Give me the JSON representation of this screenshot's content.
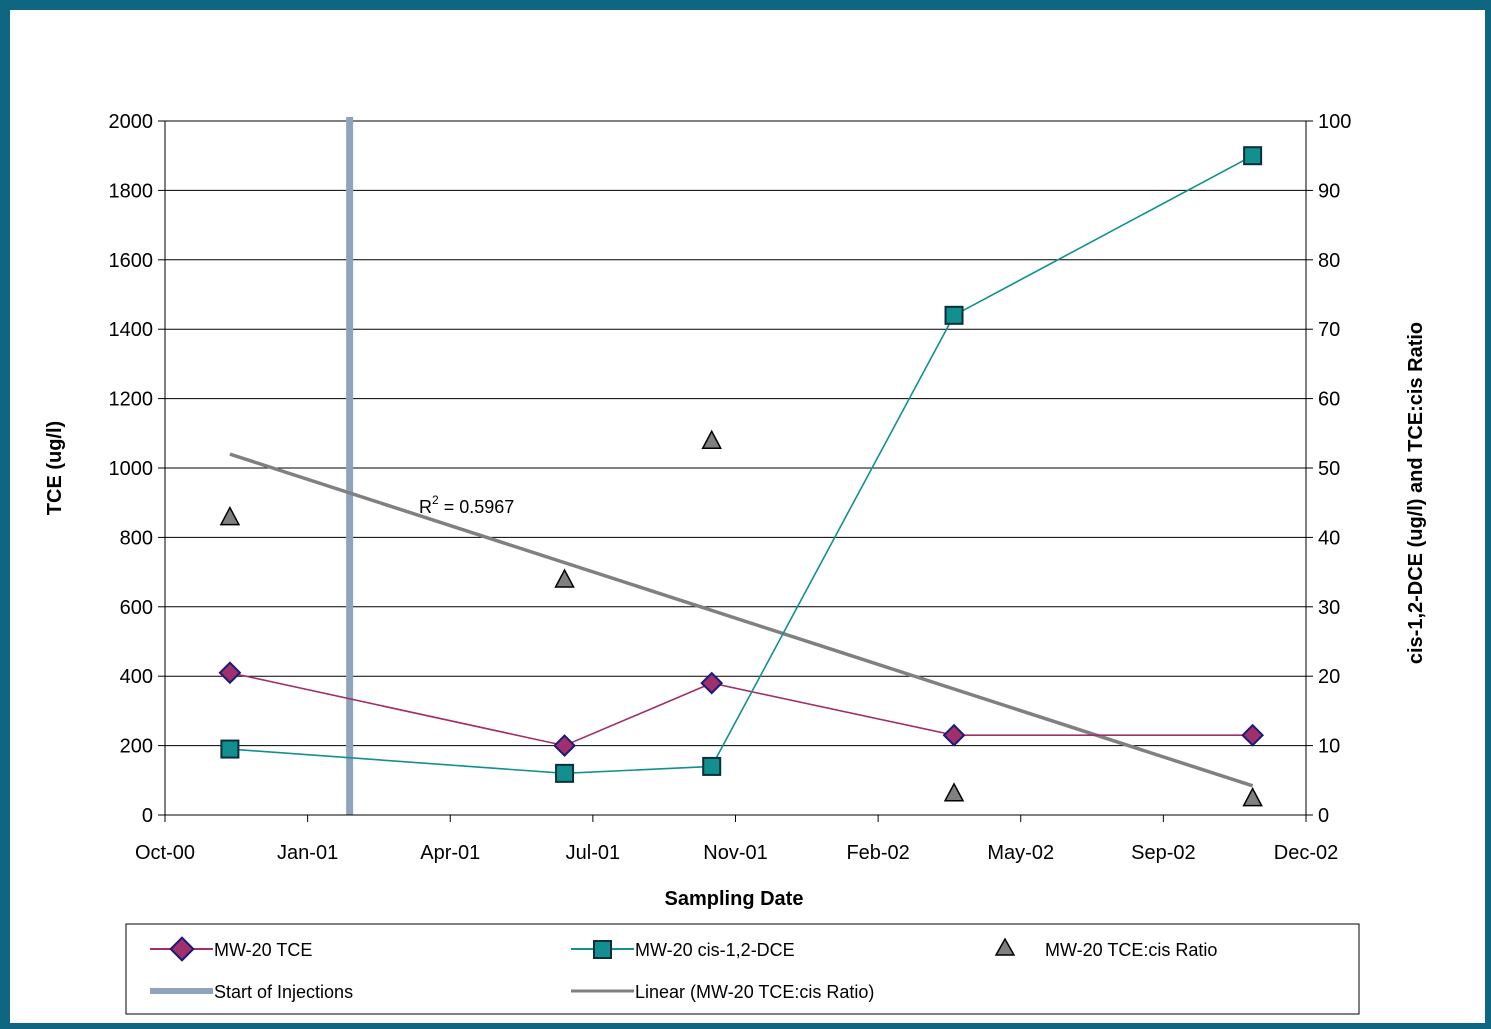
{
  "chart_data": {
    "type": "line",
    "xlabel": "Sampling Date",
    "ylabel": "TCE (ug/l)",
    "y2label": "cis-1,2-DCE (ug/l) and TCE:cis Ratio",
    "x_ticks": [
      "Oct-00",
      "Jan-01",
      "Apr-01",
      "Jul-01",
      "Nov-01",
      "Feb-02",
      "May-02",
      "Sep-02",
      "Dec-02"
    ],
    "x_range": [
      "2000-10-01",
      "2002-12-01"
    ],
    "ylim": [
      0,
      2000
    ],
    "y_ticks": [
      0,
      200,
      400,
      600,
      800,
      1000,
      1200,
      1400,
      1600,
      1800,
      2000
    ],
    "y2lim": [
      0,
      100
    ],
    "y2_ticks": [
      0,
      10,
      20,
      30,
      40,
      50,
      60,
      70,
      80,
      90,
      100
    ],
    "grid": "horizontal",
    "legend_position": "bottom",
    "series": [
      {
        "name": "MW-20 TCE",
        "axis": "left",
        "marker": "diamond",
        "color": "#a0306b",
        "points": [
          {
            "x": "2000-11-15",
            "y": 410
          },
          {
            "x": "2001-07-05",
            "y": 200
          },
          {
            "x": "2001-10-15",
            "y": 380
          },
          {
            "x": "2002-04-01",
            "y": 230
          },
          {
            "x": "2002-10-25",
            "y": 230
          }
        ]
      },
      {
        "name": "MW-20 cis-1,2-DCE",
        "axis": "right",
        "marker": "square",
        "color": "#12908f",
        "points": [
          {
            "x": "2000-11-15",
            "y": 9.5
          },
          {
            "x": "2001-07-05",
            "y": 6
          },
          {
            "x": "2001-10-15",
            "y": 7
          },
          {
            "x": "2002-04-01",
            "y": 72
          },
          {
            "x": "2002-10-25",
            "y": 95
          }
        ]
      },
      {
        "name": "MW-20 TCE:cis Ratio",
        "axis": "right",
        "marker": "triangle",
        "color": "#808080",
        "points": [
          {
            "x": "2000-11-15",
            "y": 43
          },
          {
            "x": "2001-07-05",
            "y": 34
          },
          {
            "x": "2001-10-15",
            "y": 54
          },
          {
            "x": "2002-04-01",
            "y": 3.2
          },
          {
            "x": "2002-10-25",
            "y": 2.5
          }
        ]
      }
    ],
    "trendline": {
      "name": "Linear (MW-20 TCE:cis Ratio)",
      "axis": "right",
      "color": "#808080",
      "start": {
        "x": "2000-11-15",
        "y": 52
      },
      "end": {
        "x": "2002-10-25",
        "y": 4.2
      },
      "annotation": {
        "prefix": "R",
        "superscript": "2",
        "suffix": " = 0.5967"
      }
    },
    "vline": {
      "name": "Start of Injections",
      "x": "2001-02-06",
      "color": "#8ea4bd"
    }
  }
}
